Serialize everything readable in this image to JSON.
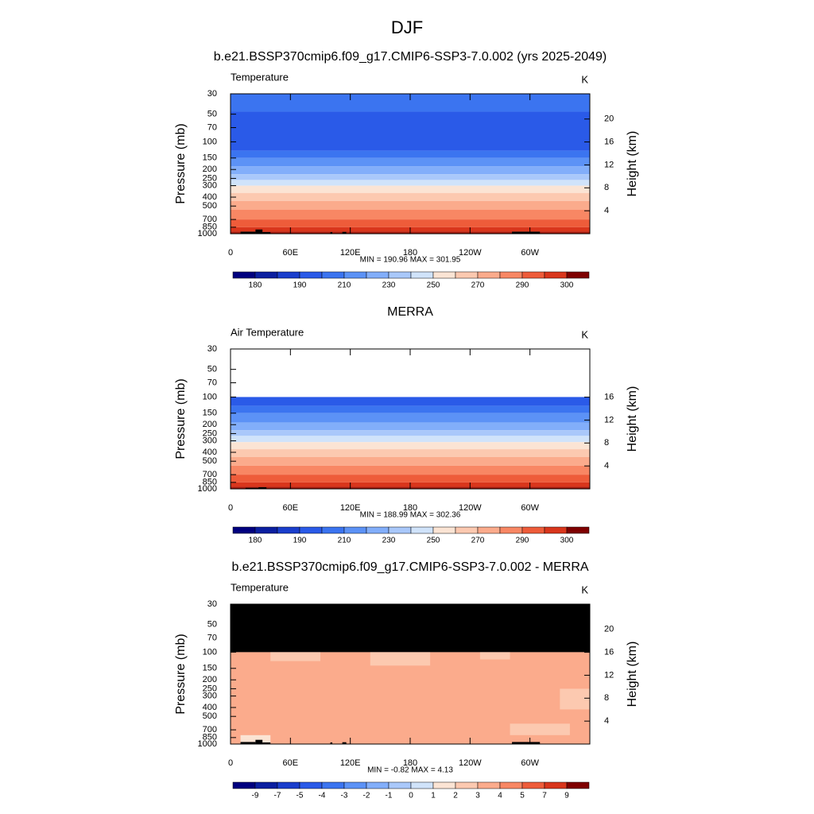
{
  "title": "DJF",
  "chart_data": [
    {
      "type": "contour",
      "title": "b.e21.BSSP370cmip6.f09_g17.CMIP6-SSP3-7.0.002 (yrs 2025-2049)",
      "left_label": "Temperature",
      "right_label": "K",
      "ylabel": "Pressure (mb)",
      "y2label": "Height (km)",
      "xlim": [
        0,
        360
      ],
      "xticks": [
        0,
        {
          "value": 60,
          "label": "60E"
        },
        {
          "value": 120,
          "label": "120E"
        },
        180,
        {
          "value": 240,
          "label": "120W"
        },
        {
          "value": 300,
          "label": "60W"
        }
      ],
      "ylog": true,
      "ylim": [
        1000,
        30
      ],
      "yticks": [
        30,
        50,
        70,
        100,
        150,
        200,
        250,
        300,
        400,
        500,
        700,
        850,
        1000
      ],
      "y2lim": [
        0,
        24.4
      ],
      "y2ticks": [
        4,
        8,
        12,
        16,
        20
      ],
      "stats": "MIN = 190.96  MAX = 301.95",
      "bands": [
        {
          "p": [
            30,
            47
          ],
          "color": "#3b74f0"
        },
        {
          "p": [
            47,
            125
          ],
          "color": "#2a5ae8"
        },
        {
          "p": [
            125,
            150
          ],
          "color": "#3b74f0"
        },
        {
          "p": [
            150,
            185
          ],
          "color": "#5c92f6"
        },
        {
          "p": [
            185,
            225
          ],
          "color": "#82aefa"
        },
        {
          "p": [
            225,
            260
          ],
          "color": "#a9c8fa"
        },
        {
          "p": [
            260,
            300
          ],
          "color": "#d0e3fa"
        },
        {
          "p": [
            300,
            360
          ],
          "color": "#fbe4d4"
        },
        {
          "p": [
            360,
            440
          ],
          "color": "#fcc9b0"
        },
        {
          "p": [
            440,
            550
          ],
          "color": "#fbab8c"
        },
        {
          "p": [
            550,
            700
          ],
          "color": "#f88764"
        },
        {
          "p": [
            700,
            850
          ],
          "color": "#ee5c3a"
        },
        {
          "p": [
            850,
            950
          ],
          "color": "#d9361c"
        },
        {
          "p": [
            950,
            1000
          ],
          "color": "#a51b0e"
        }
      ],
      "terrain": [
        {
          "lon": [
            10,
            25
          ],
          "p": 950
        },
        {
          "lon": [
            25,
            32
          ],
          "p": 900
        },
        {
          "lon": [
            32,
            40
          ],
          "p": 960
        },
        {
          "lon": [
            100,
            102
          ],
          "p": 960
        },
        {
          "lon": [
            112,
            116
          ],
          "p": 955
        },
        {
          "lon": [
            282,
            310
          ],
          "p": 950
        }
      ],
      "colorbar": {
        "colors": [
          "#00007f",
          "#0b1fa0",
          "#1a3ecc",
          "#2a5ae8",
          "#3b74f0",
          "#5c92f6",
          "#82aefa",
          "#a9c8fa",
          "#d0e3fa",
          "#fbe4d4",
          "#fcc9b0",
          "#fbab8c",
          "#f88764",
          "#ee5c3a",
          "#d9361c",
          "#7f0000"
        ],
        "labels": [
          180,
          null,
          190,
          null,
          210,
          null,
          230,
          null,
          250,
          null,
          270,
          null,
          290,
          null,
          300
        ]
      }
    },
    {
      "type": "contour",
      "title": "MERRA",
      "left_label": "Air Temperature",
      "right_label": "K",
      "ylabel": "Pressure (mb)",
      "y2label": "Height (km)",
      "xlim": [
        0,
        360
      ],
      "xticks": [
        0,
        {
          "value": 60,
          "label": "60E"
        },
        {
          "value": 120,
          "label": "120E"
        },
        180,
        {
          "value": 240,
          "label": "120W"
        },
        {
          "value": 300,
          "label": "60W"
        }
      ],
      "ylog": true,
      "ylim": [
        1000,
        30
      ],
      "yticks": [
        30,
        50,
        70,
        100,
        150,
        200,
        250,
        300,
        400,
        500,
        700,
        850,
        1000
      ],
      "y2lim": [
        0,
        24.4
      ],
      "y2ticks": [
        4,
        8,
        12,
        16
      ],
      "stats": "MIN = 188.99  MAX = 302.36",
      "bands": [
        {
          "p": [
            100,
            125
          ],
          "color": "#2a5ae8"
        },
        {
          "p": [
            125,
            150
          ],
          "color": "#3b74f0"
        },
        {
          "p": [
            150,
            190
          ],
          "color": "#5c92f6"
        },
        {
          "p": [
            190,
            230
          ],
          "color": "#82aefa"
        },
        {
          "p": [
            230,
            265
          ],
          "color": "#a9c8fa"
        },
        {
          "p": [
            265,
            310
          ],
          "color": "#d0e3fa"
        },
        {
          "p": [
            310,
            370
          ],
          "color": "#fbe4d4"
        },
        {
          "p": [
            370,
            450
          ],
          "color": "#fcc9b0"
        },
        {
          "p": [
            450,
            560
          ],
          "color": "#fbab8c"
        },
        {
          "p": [
            560,
            700
          ],
          "color": "#f88764"
        },
        {
          "p": [
            700,
            850
          ],
          "color": "#ee5c3a"
        },
        {
          "p": [
            850,
            950
          ],
          "color": "#d9361c"
        },
        {
          "p": [
            950,
            1000
          ],
          "color": "#a51b0e"
        }
      ],
      "terrain": [
        {
          "lon": [
            15,
            28
          ],
          "p": 975
        },
        {
          "lon": [
            28,
            36
          ],
          "p": 960
        }
      ],
      "colorbar": {
        "colors": [
          "#00007f",
          "#0b1fa0",
          "#1a3ecc",
          "#2a5ae8",
          "#3b74f0",
          "#5c92f6",
          "#82aefa",
          "#a9c8fa",
          "#d0e3fa",
          "#fbe4d4",
          "#fcc9b0",
          "#fbab8c",
          "#f88764",
          "#ee5c3a",
          "#d9361c",
          "#7f0000"
        ],
        "labels": [
          180,
          null,
          190,
          null,
          210,
          null,
          230,
          null,
          250,
          null,
          270,
          null,
          290,
          null,
          300
        ]
      }
    },
    {
      "type": "contour",
      "title": "b.e21.BSSP370cmip6.f09_g17.CMIP6-SSP3-7.0.002 - MERRA",
      "left_label": "Temperature",
      "right_label": "K",
      "ylabel": "Pressure (mb)",
      "y2label": "Height (km)",
      "xlim": [
        0,
        360
      ],
      "xticks": [
        0,
        {
          "value": 60,
          "label": "60E"
        },
        {
          "value": 120,
          "label": "120E"
        },
        180,
        {
          "value": 240,
          "label": "120W"
        },
        {
          "value": 300,
          "label": "60W"
        }
      ],
      "ylog": true,
      "ylim": [
        1000,
        30
      ],
      "yticks": [
        30,
        50,
        70,
        100,
        150,
        200,
        250,
        300,
        400,
        500,
        700,
        850,
        1000
      ],
      "y2lim": [
        0,
        24.4
      ],
      "y2ticks": [
        4,
        8,
        12,
        16,
        20
      ],
      "stats": "MIN = -0.82  MAX =  4.13",
      "bands": [
        {
          "p": [
            30,
            100
          ],
          "color": "#000000"
        },
        {
          "p": [
            100,
            1000
          ],
          "color": "#fbab8c"
        },
        {
          "p": [
            100,
            140
          ],
          "lon": [
            140,
            200
          ],
          "color": "#fcc9b0"
        },
        {
          "p": [
            100,
            125
          ],
          "lon": [
            40,
            90
          ],
          "color": "#fcc9b0"
        },
        {
          "p": [
            100,
            120
          ],
          "lon": [
            250,
            280
          ],
          "color": "#fcc9b0"
        },
        {
          "p": [
            250,
            420
          ],
          "lon": [
            330,
            360
          ],
          "color": "#fcc9b0"
        },
        {
          "p": [
            600,
            800
          ],
          "lon": [
            280,
            340
          ],
          "color": "#fcc9b0"
        },
        {
          "p": [
            800,
            1000
          ],
          "lon": [
            10,
            40
          ],
          "color": "#fbe4d4"
        }
      ],
      "terrain": [
        {
          "lon": [
            10,
            25
          ],
          "p": 950
        },
        {
          "lon": [
            25,
            32
          ],
          "p": 900
        },
        {
          "lon": [
            32,
            40
          ],
          "p": 960
        },
        {
          "lon": [
            100,
            102
          ],
          "p": 960
        },
        {
          "lon": [
            112,
            116
          ],
          "p": 955
        },
        {
          "lon": [
            282,
            310
          ],
          "p": 950
        }
      ],
      "colorbar": {
        "colors": [
          "#00007f",
          "#0b1fa0",
          "#1a3ecc",
          "#2a5ae8",
          "#3b74f0",
          "#5c92f6",
          "#82aefa",
          "#a9c8fa",
          "#d0e3fa",
          "#fbe4d4",
          "#fcc9b0",
          "#fbab8c",
          "#f88764",
          "#ee5c3a",
          "#d9361c",
          "#7f0000"
        ],
        "labels": [
          -9,
          -7,
          -5,
          -4,
          -3,
          -2,
          -1,
          0,
          1,
          2,
          3,
          4,
          5,
          7,
          9
        ]
      }
    }
  ]
}
